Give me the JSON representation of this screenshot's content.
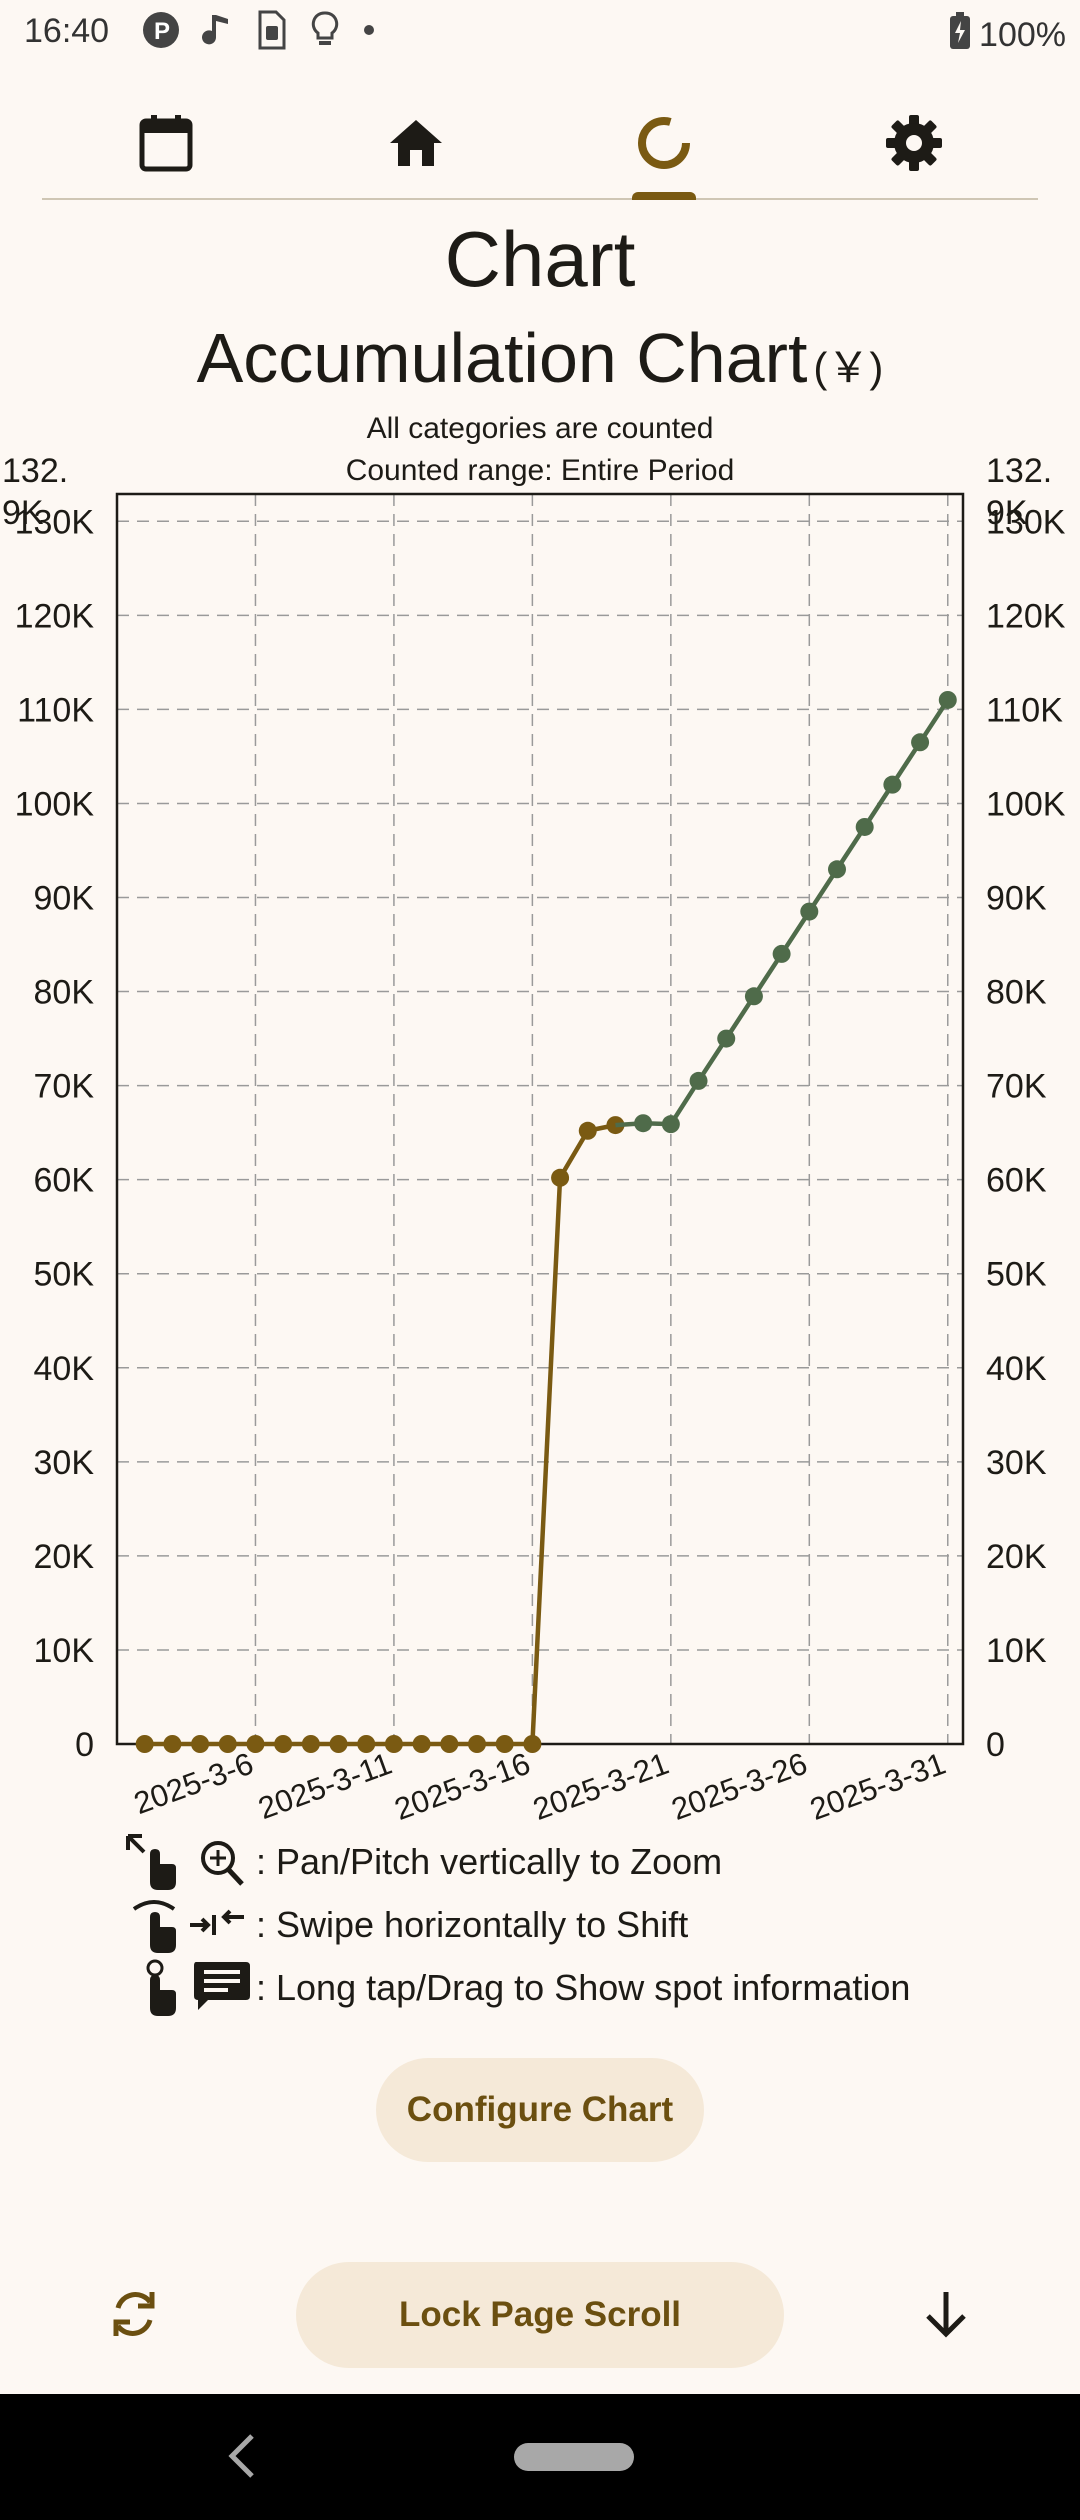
{
  "status_bar": {
    "time": "16:40",
    "battery": "100%",
    "icons": [
      "p-circle-icon",
      "music-note-icon",
      "sim-icon",
      "lightbulb-icon",
      "dot-icon"
    ]
  },
  "tabs": [
    {
      "name": "calendar-icon",
      "active": false
    },
    {
      "name": "home-icon",
      "active": false
    },
    {
      "name": "chart-icon",
      "active": true
    },
    {
      "name": "gear-icon",
      "active": false
    }
  ],
  "header": {
    "page_title": "Chart",
    "chart_title": "Accumulation Chart",
    "currency_unit": "(￥)",
    "subtitle_categories": "All categories are counted",
    "subtitle_range": "Counted range: Entire Period"
  },
  "chart_data": {
    "type": "line",
    "title": "Accumulation Chart",
    "x_tick_labels": [
      "2025-3-6",
      "2025-3-11",
      "2025-3-16",
      "2025-3-21",
      "2025-3-26",
      "2025-3-31"
    ],
    "y_tick_labels": [
      "0",
      "10K",
      "20K",
      "30K",
      "40K",
      "50K",
      "60K",
      "70K",
      "80K",
      "90K",
      "100K",
      "110K",
      "120K",
      "130K"
    ],
    "y_max_label": "132.9K",
    "ylim": [
      0,
      132900
    ],
    "xlim": [
      "2025-3-1",
      "2025-3-31"
    ],
    "grid": true,
    "series": [
      {
        "color": "#7A5A12",
        "points": [
          [
            "2025-3-2",
            0
          ],
          [
            "2025-3-3",
            0
          ],
          [
            "2025-3-4",
            0
          ],
          [
            "2025-3-5",
            0
          ],
          [
            "2025-3-6",
            0
          ],
          [
            "2025-3-7",
            0
          ],
          [
            "2025-3-8",
            0
          ],
          [
            "2025-3-9",
            0
          ],
          [
            "2025-3-10",
            0
          ],
          [
            "2025-3-11",
            0
          ],
          [
            "2025-3-12",
            0
          ],
          [
            "2025-3-13",
            0
          ],
          [
            "2025-3-14",
            0
          ],
          [
            "2025-3-15",
            0
          ],
          [
            "2025-3-16",
            0
          ],
          [
            "2025-3-17",
            60200
          ],
          [
            "2025-3-18",
            65200
          ],
          [
            "2025-3-19",
            65800
          ]
        ]
      },
      {
        "color": "#4F6B4A",
        "points": [
          [
            "2025-3-20",
            66000
          ],
          [
            "2025-3-21",
            65900
          ],
          [
            "2025-3-22",
            70500
          ],
          [
            "2025-3-23",
            75000
          ],
          [
            "2025-3-24",
            79500
          ],
          [
            "2025-3-25",
            84000
          ],
          [
            "2025-3-26",
            88500
          ],
          [
            "2025-3-27",
            93000
          ],
          [
            "2025-3-28",
            97500
          ],
          [
            "2025-3-29",
            102000
          ],
          [
            "2025-3-30",
            106500
          ],
          [
            "2025-3-31",
            111000
          ]
        ]
      }
    ]
  },
  "hints": [
    {
      "text": ": Pan/Pitch vertically to Zoom",
      "icon": "pan-zoom-icon"
    },
    {
      "text": ": Swipe horizontally to Shift",
      "icon": "swipe-shift-icon"
    },
    {
      "text": ": Long tap/Drag to Show spot information",
      "icon": "long-tap-info-icon"
    }
  ],
  "buttons": {
    "configure": "Configure Chart",
    "lock_scroll": "Lock Page Scroll"
  }
}
